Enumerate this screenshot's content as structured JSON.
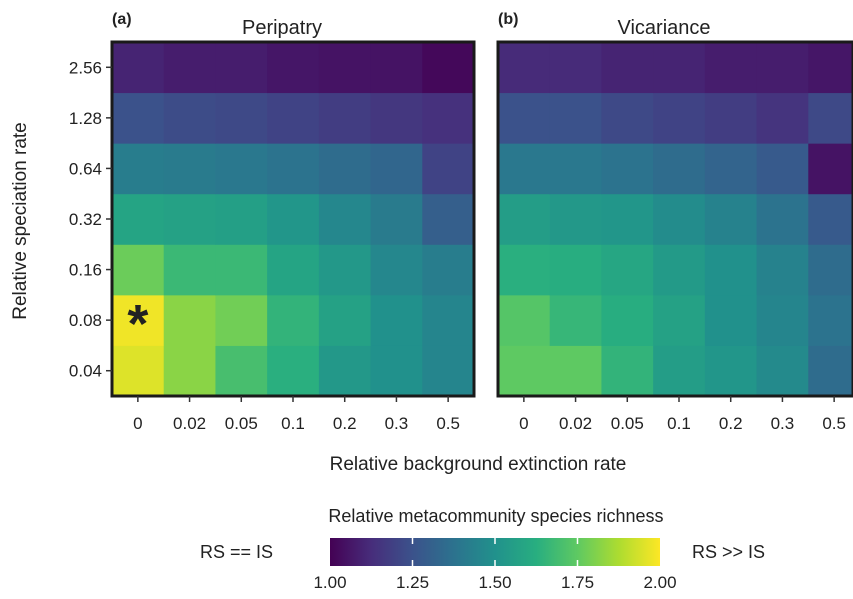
{
  "chart_data": {
    "type": "heatmap",
    "ylabel": "Relative speciation rate",
    "xlabel": "Relative background extinction rate",
    "x_categories": [
      "0",
      "0.02",
      "0.05",
      "0.1",
      "0.2",
      "0.3",
      "0.5"
    ],
    "y_categories": [
      "0.04",
      "0.08",
      "0.16",
      "0.32",
      "0.64",
      "1.28",
      "2.56"
    ],
    "colorscale": {
      "title": "Relative metacommunity species richness",
      "left_label": "RS == IS",
      "right_label": "RS >> IS",
      "ticks": [
        "1.00",
        "1.25",
        "1.50",
        "1.75",
        "2.00"
      ],
      "min": 1.0,
      "max": 2.0,
      "palette": "viridis"
    },
    "panels": [
      {
        "tag": "(a)",
        "title": "Peripatry",
        "annotation": "*",
        "annotation_cell": {
          "x": "0",
          "y": "0.08"
        },
        "values": [
          [
            1.95,
            1.82,
            1.7,
            1.63,
            1.53,
            1.5,
            1.45
          ],
          [
            1.98,
            1.82,
            1.78,
            1.65,
            1.57,
            1.5,
            1.45
          ],
          [
            1.77,
            1.67,
            1.67,
            1.58,
            1.53,
            1.46,
            1.42
          ],
          [
            1.58,
            1.57,
            1.56,
            1.52,
            1.46,
            1.41,
            1.3
          ],
          [
            1.42,
            1.41,
            1.4,
            1.38,
            1.35,
            1.33,
            1.2
          ],
          [
            1.25,
            1.23,
            1.22,
            1.2,
            1.18,
            1.16,
            1.14
          ],
          [
            1.1,
            1.08,
            1.08,
            1.06,
            1.05,
            1.05,
            1.02
          ]
        ]
      },
      {
        "tag": "(b)",
        "title": "Vicariance",
        "annotation": "",
        "values": [
          [
            1.75,
            1.75,
            1.65,
            1.55,
            1.52,
            1.47,
            1.35
          ],
          [
            1.73,
            1.66,
            1.62,
            1.57,
            1.5,
            1.45,
            1.38
          ],
          [
            1.63,
            1.62,
            1.59,
            1.54,
            1.5,
            1.44,
            1.35
          ],
          [
            1.55,
            1.53,
            1.52,
            1.48,
            1.44,
            1.38,
            1.28
          ],
          [
            1.4,
            1.4,
            1.38,
            1.35,
            1.32,
            1.28,
            1.05
          ],
          [
            1.25,
            1.25,
            1.22,
            1.2,
            1.18,
            1.15,
            1.22
          ],
          [
            1.12,
            1.12,
            1.1,
            1.1,
            1.08,
            1.08,
            1.06
          ]
        ]
      }
    ]
  }
}
